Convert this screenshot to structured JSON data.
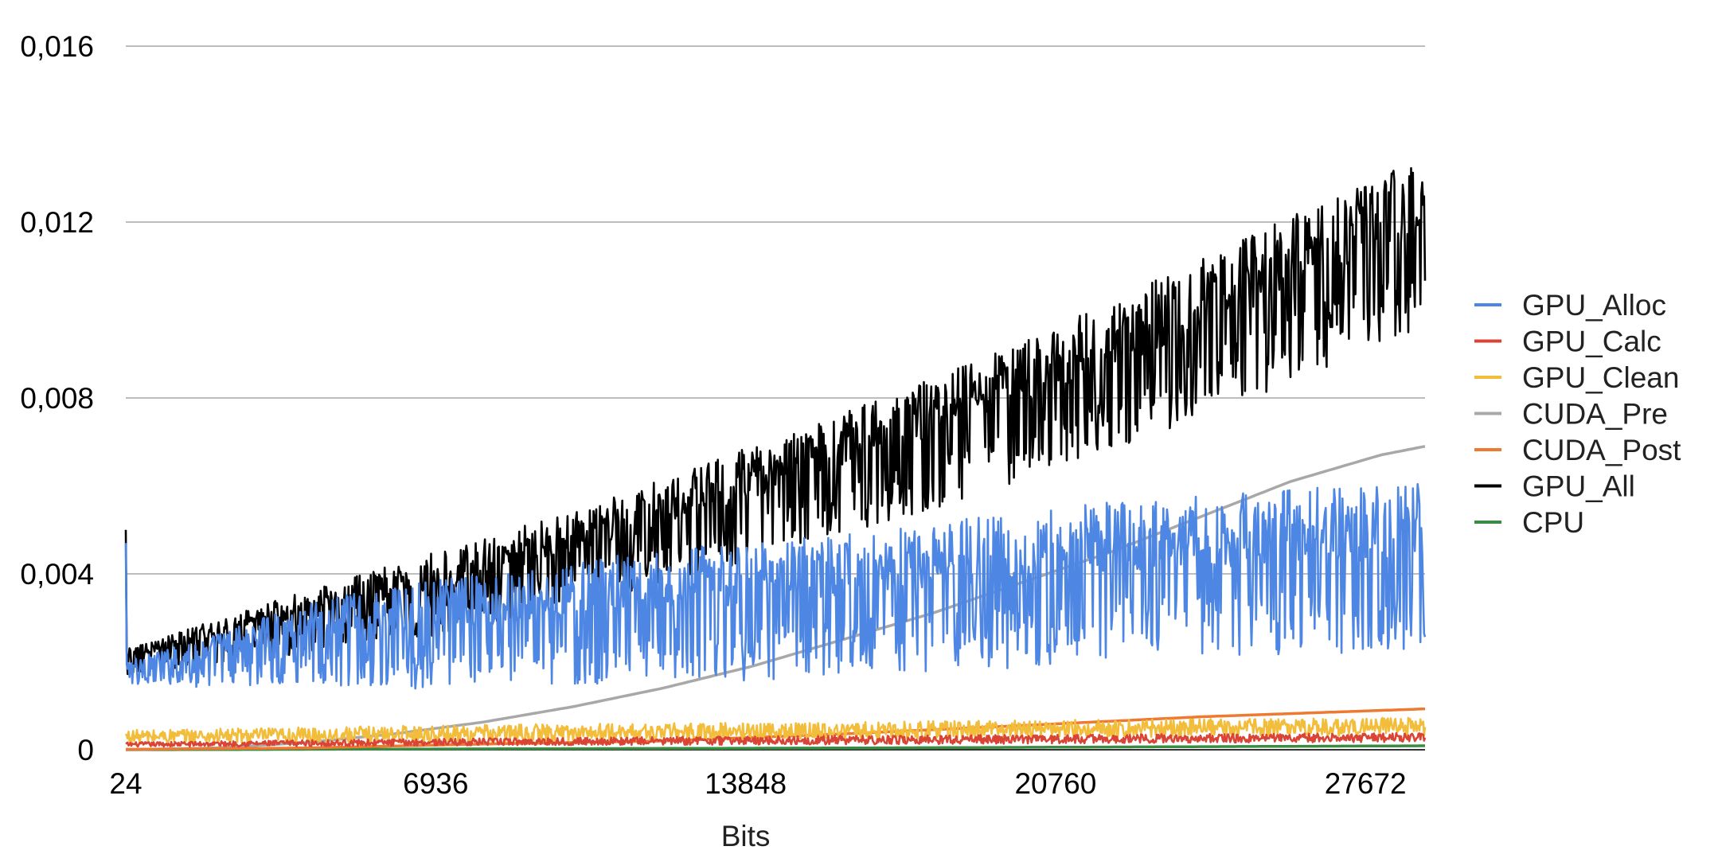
{
  "chart_data": {
    "type": "line",
    "xlabel": "Bits",
    "ylabel": "",
    "xlim": [
      24,
      29000
    ],
    "ylim": [
      0,
      0.016
    ],
    "x_ticks": [
      "24",
      "6936",
      "13848",
      "20760",
      "27672"
    ],
    "y_ticks": [
      "0",
      "0,004",
      "0,008",
      "0,012",
      "0,016"
    ],
    "grid": "horizontal",
    "legend_position": "right",
    "series": [
      {
        "name": "GPU_Alloc",
        "color": "#4e86e4",
        "x": [
          24,
          2000,
          4000,
          6000,
          8000,
          10000,
          12000,
          14000,
          16000,
          18000,
          20000,
          22000,
          24000,
          26000,
          28000,
          29000
        ],
        "values": [
          0.0018,
          0.0022,
          0.0027,
          0.0029,
          0.0031,
          0.0033,
          0.0035,
          0.0036,
          0.0038,
          0.004,
          0.0042,
          0.0044,
          0.0045,
          0.0046,
          0.0047,
          0.0048
        ],
        "spread": [
          0.0003,
          0.0006,
          0.0009,
          0.0012,
          0.0013,
          0.0014,
          0.0015,
          0.0016,
          0.0016,
          0.0017,
          0.0018,
          0.0018,
          0.0018,
          0.0019,
          0.0019,
          0.0019
        ]
      },
      {
        "name": "GPU_Calc",
        "color": "#d94435",
        "x": [
          24,
          4000,
          8000,
          12000,
          16000,
          20000,
          24000,
          29000
        ],
        "values": [
          0.00012,
          0.00015,
          0.00018,
          0.0002,
          0.00022,
          0.00024,
          0.00026,
          0.00028
        ],
        "spread": [
          5e-05,
          7e-05,
          8e-05,
          9e-05,
          0.0001,
          0.0001,
          0.0001,
          0.0001
        ]
      },
      {
        "name": "GPU_Clean",
        "color": "#f3bd3c",
        "x": [
          24,
          4000,
          8000,
          12000,
          16000,
          20000,
          24000,
          29000
        ],
        "values": [
          0.0003,
          0.00033,
          0.00037,
          0.0004,
          0.00043,
          0.00047,
          0.0005,
          0.00053
        ],
        "spread": [
          0.00015,
          0.00018,
          0.0002,
          0.0002,
          0.0002,
          0.0002,
          0.0002,
          0.0002
        ]
      },
      {
        "name": "CUDA_Pre",
        "color": "#a8a8a8",
        "x": [
          24,
          2000,
          4000,
          6000,
          8000,
          10000,
          12000,
          14000,
          16000,
          18000,
          20000,
          22000,
          24000,
          26000,
          28000,
          29000
        ],
        "values": [
          0.0,
          4e-05,
          0.00016,
          0.00036,
          0.00063,
          0.00098,
          0.0014,
          0.0019,
          0.0025,
          0.0031,
          0.0038,
          0.0045,
          0.0053,
          0.0061,
          0.0067,
          0.0069
        ]
      },
      {
        "name": "CUDA_Post",
        "color": "#ee7a31",
        "x": [
          24,
          4000,
          8000,
          12000,
          16000,
          20000,
          24000,
          29000
        ],
        "values": [
          1e-05,
          4e-05,
          0.00013,
          0.0002,
          0.00036,
          0.00055,
          0.00075,
          0.00093
        ]
      },
      {
        "name": "GPU_All",
        "color": "#000000",
        "x": [
          24,
          2000,
          4000,
          6000,
          8000,
          10000,
          12000,
          14000,
          16000,
          18000,
          20000,
          22000,
          24000,
          26000,
          28000,
          29000
        ],
        "values": [
          0.0021,
          0.0026,
          0.0031,
          0.0036,
          0.0041,
          0.0047,
          0.0053,
          0.006,
          0.0067,
          0.0074,
          0.0082,
          0.009,
          0.0099,
          0.0108,
          0.0117,
          0.0121
        ],
        "spread": [
          0.0003,
          0.0005,
          0.0007,
          0.0009,
          0.001,
          0.0011,
          0.0012,
          0.0013,
          0.0014,
          0.0015,
          0.0016,
          0.0017,
          0.0018,
          0.0019,
          0.002,
          0.0021
        ]
      },
      {
        "name": "CPU",
        "color": "#3a8c43",
        "x": [
          24,
          8000,
          16000,
          24000,
          29000
        ],
        "values": [
          0.0,
          2e-05,
          4e-05,
          7e-05,
          9e-05
        ]
      }
    ]
  }
}
